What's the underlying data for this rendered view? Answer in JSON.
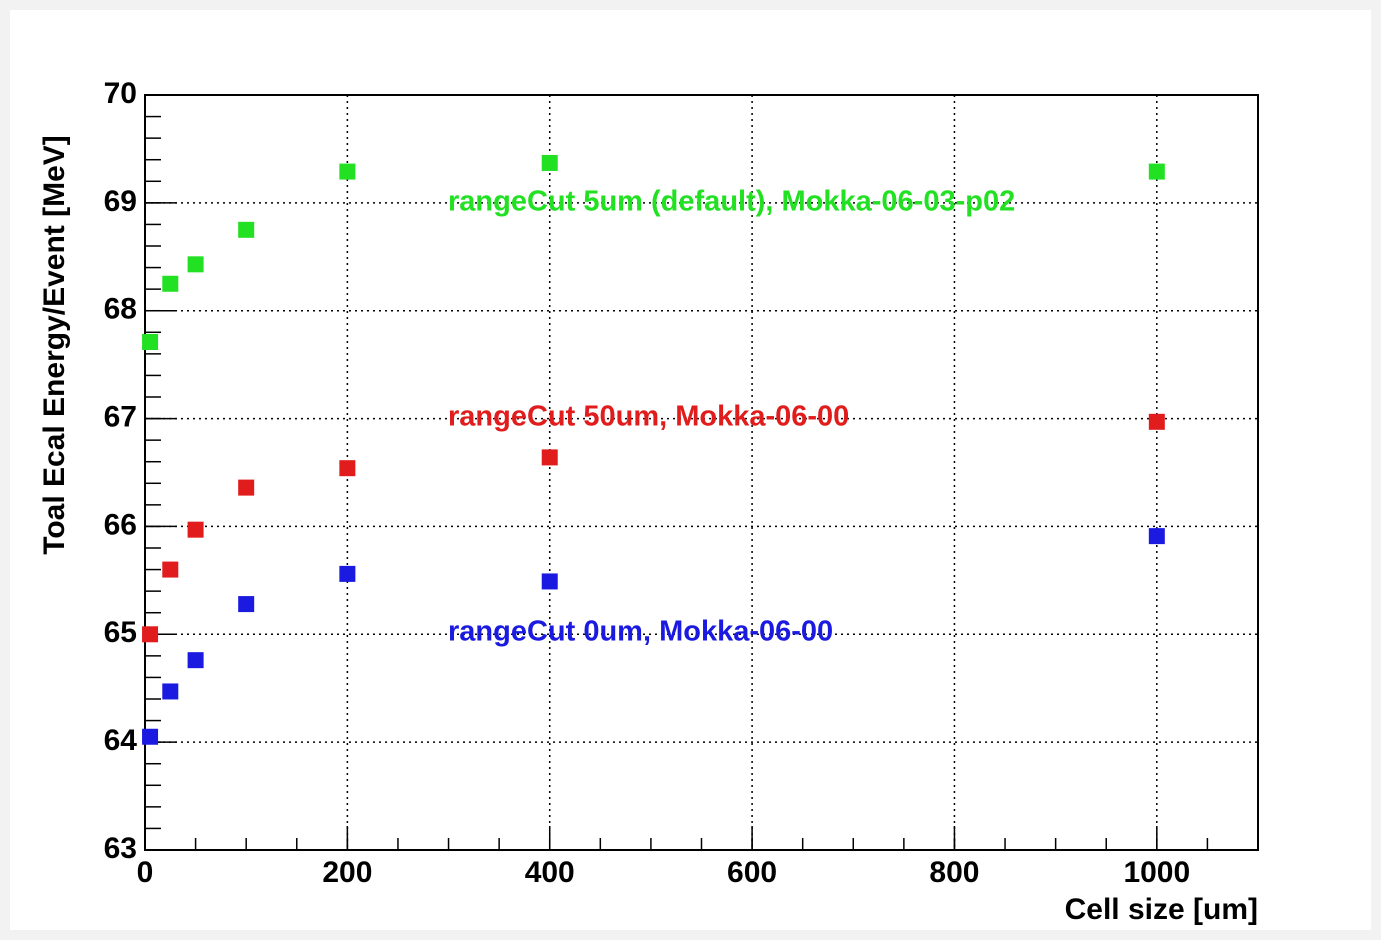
{
  "chart_data": {
    "type": "scatter",
    "x_label": "Cell size [um]",
    "y_label": "Toal Ecal Energy/Event [MeV]",
    "xlim": [
      0,
      1100
    ],
    "xticks": [
      0,
      200,
      400,
      600,
      800,
      1000
    ],
    "ylim": [
      63,
      70
    ],
    "yticks": [
      63,
      64,
      65,
      66,
      67,
      68,
      69,
      70
    ],
    "grid": true,
    "series": [
      {
        "name": "rangeCut 5um (default), Mokka-06-03-p02",
        "color": "#22e022",
        "x": [
          5,
          25,
          50,
          100,
          200,
          400,
          1000
        ],
        "values": [
          67.71,
          68.25,
          68.43,
          68.75,
          69.29,
          69.37,
          69.29
        ]
      },
      {
        "name": "rangeCut 50um, Mokka-06-00",
        "color": "#e01c1c",
        "x": [
          5,
          25,
          50,
          100,
          200,
          400,
          1000
        ],
        "values": [
          65.0,
          65.6,
          65.97,
          66.36,
          66.54,
          66.64,
          66.97
        ]
      },
      {
        "name": "rangeCut 0um, Mokka-06-00",
        "color": "#1a1ae0",
        "x": [
          5,
          25,
          50,
          100,
          200,
          400,
          1000
        ],
        "values": [
          64.05,
          64.47,
          64.76,
          65.28,
          65.56,
          65.49,
          65.91
        ]
      }
    ]
  }
}
